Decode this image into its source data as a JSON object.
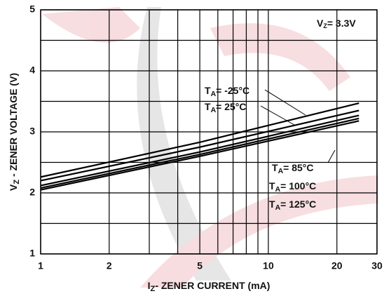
{
  "chart_data": {
    "type": "line",
    "title_note": {
      "main": "V",
      "sub": "Z",
      "rest": "= 3.3V"
    },
    "x_label": {
      "main": "I",
      "sub": "Z",
      "rest": "- ZENER CURRENT (mA)"
    },
    "y_label": {
      "main": "V",
      "sub": "Z",
      "rest": " - ZENER VOLTAGE (V)"
    },
    "log_x": true,
    "xlim": [
      1,
      30
    ],
    "xticks": [
      1,
      2,
      5,
      10,
      20,
      30
    ],
    "xgrid": [
      3,
      4,
      6,
      7,
      8,
      9
    ],
    "ylim": [
      1,
      5
    ],
    "yticks": [
      1,
      2,
      3,
      4,
      5
    ],
    "ygrid": [
      1.5,
      2.5,
      3.5,
      4.5
    ],
    "grid": true,
    "x": [
      1,
      5,
      25
    ],
    "series": [
      {
        "name": {
          "main": "T",
          "sub": "A",
          "rest": "= -25°C"
        },
        "color": "#000000",
        "values": [
          2.26,
          2.83,
          3.47
        ]
      },
      {
        "name": {
          "main": "T",
          "sub": "A",
          "rest": "= 25°C"
        },
        "color": "#000000",
        "values": [
          2.2,
          2.75,
          3.35
        ]
      },
      {
        "name": {
          "main": "T",
          "sub": "A",
          "rest": "= 85°C"
        },
        "color": "#000000",
        "values": [
          2.12,
          2.67,
          3.27
        ]
      },
      {
        "name": {
          "main": "T",
          "sub": "A",
          "rest": "= 100°C"
        },
        "color": "#000000",
        "values": [
          2.08,
          2.63,
          3.22
        ]
      },
      {
        "name": {
          "main": "T",
          "sub": "A",
          "rest": "= 125°C"
        },
        "color": "#000000",
        "values": [
          2.05,
          2.6,
          3.18
        ]
      }
    ]
  }
}
